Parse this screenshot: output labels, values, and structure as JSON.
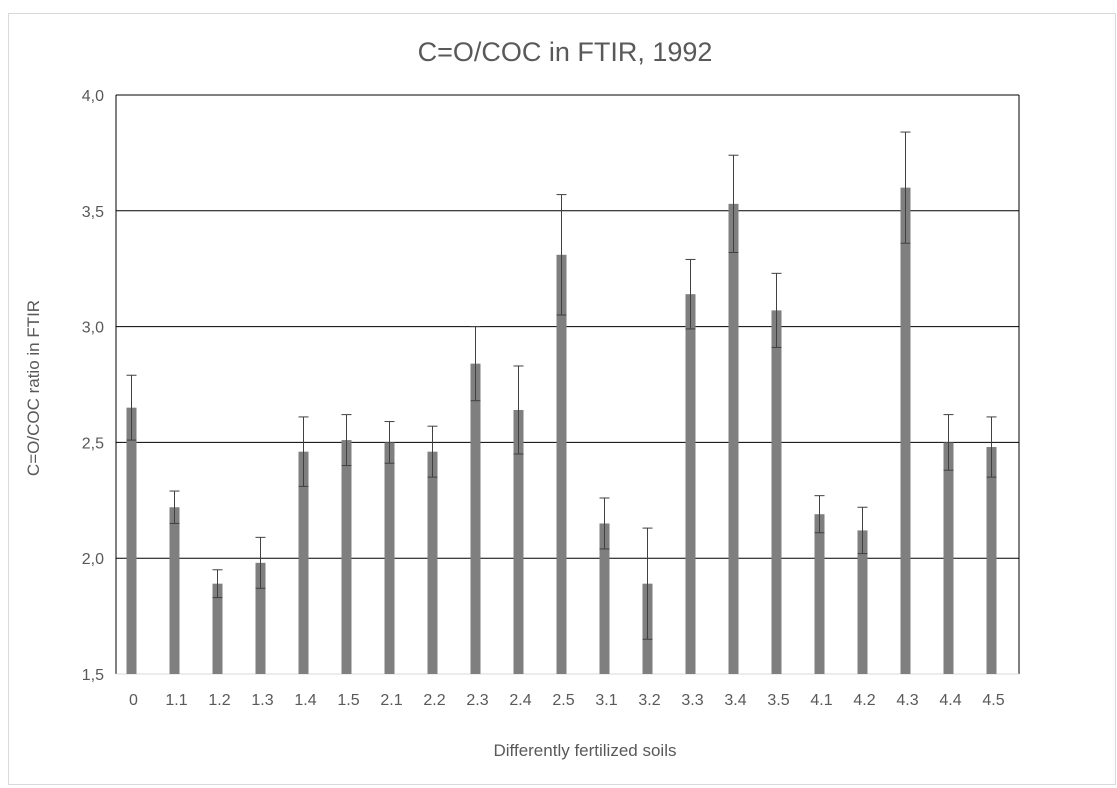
{
  "chart_data": {
    "type": "bar",
    "title": "C=O/COC in FTIR, 1992",
    "xlabel": "Differently fertilized soils",
    "ylabel": "C=O/COC ratio in FTIR",
    "ylim": [
      1.5,
      4.0
    ],
    "yticks": [
      "1,5",
      "2,0",
      "2,5",
      "3,0",
      "3,5",
      "4,0"
    ],
    "ytick_values": [
      1.5,
      2.0,
      2.5,
      3.0,
      3.5,
      4.0
    ],
    "grid": true,
    "legend": "none",
    "categories": [
      "0",
      "1.1",
      "1.2",
      "1.3",
      "1.4",
      "1.5",
      "2.1",
      "2.2",
      "2.3",
      "2.4",
      "2.5",
      "3.1",
      "3.2",
      "3.3",
      "3.4",
      "3.5",
      "4.1",
      "4.2",
      "4.3",
      "4.4",
      "4.5"
    ],
    "values": [
      2.65,
      2.22,
      1.89,
      1.98,
      2.46,
      2.51,
      2.5,
      2.46,
      2.84,
      2.64,
      3.31,
      2.15,
      1.89,
      3.14,
      3.53,
      3.07,
      2.19,
      2.12,
      3.6,
      2.5,
      2.48
    ],
    "error": [
      0.14,
      0.07,
      0.06,
      0.11,
      0.15,
      0.11,
      0.09,
      0.11,
      0.16,
      0.19,
      0.26,
      0.11,
      0.24,
      0.15,
      0.21,
      0.16,
      0.08,
      0.1,
      0.24,
      0.12,
      0.13
    ],
    "colors": {
      "bar": "#7f7f7f",
      "grid": "#000000",
      "text": "#595959",
      "error": "#404040"
    }
  }
}
